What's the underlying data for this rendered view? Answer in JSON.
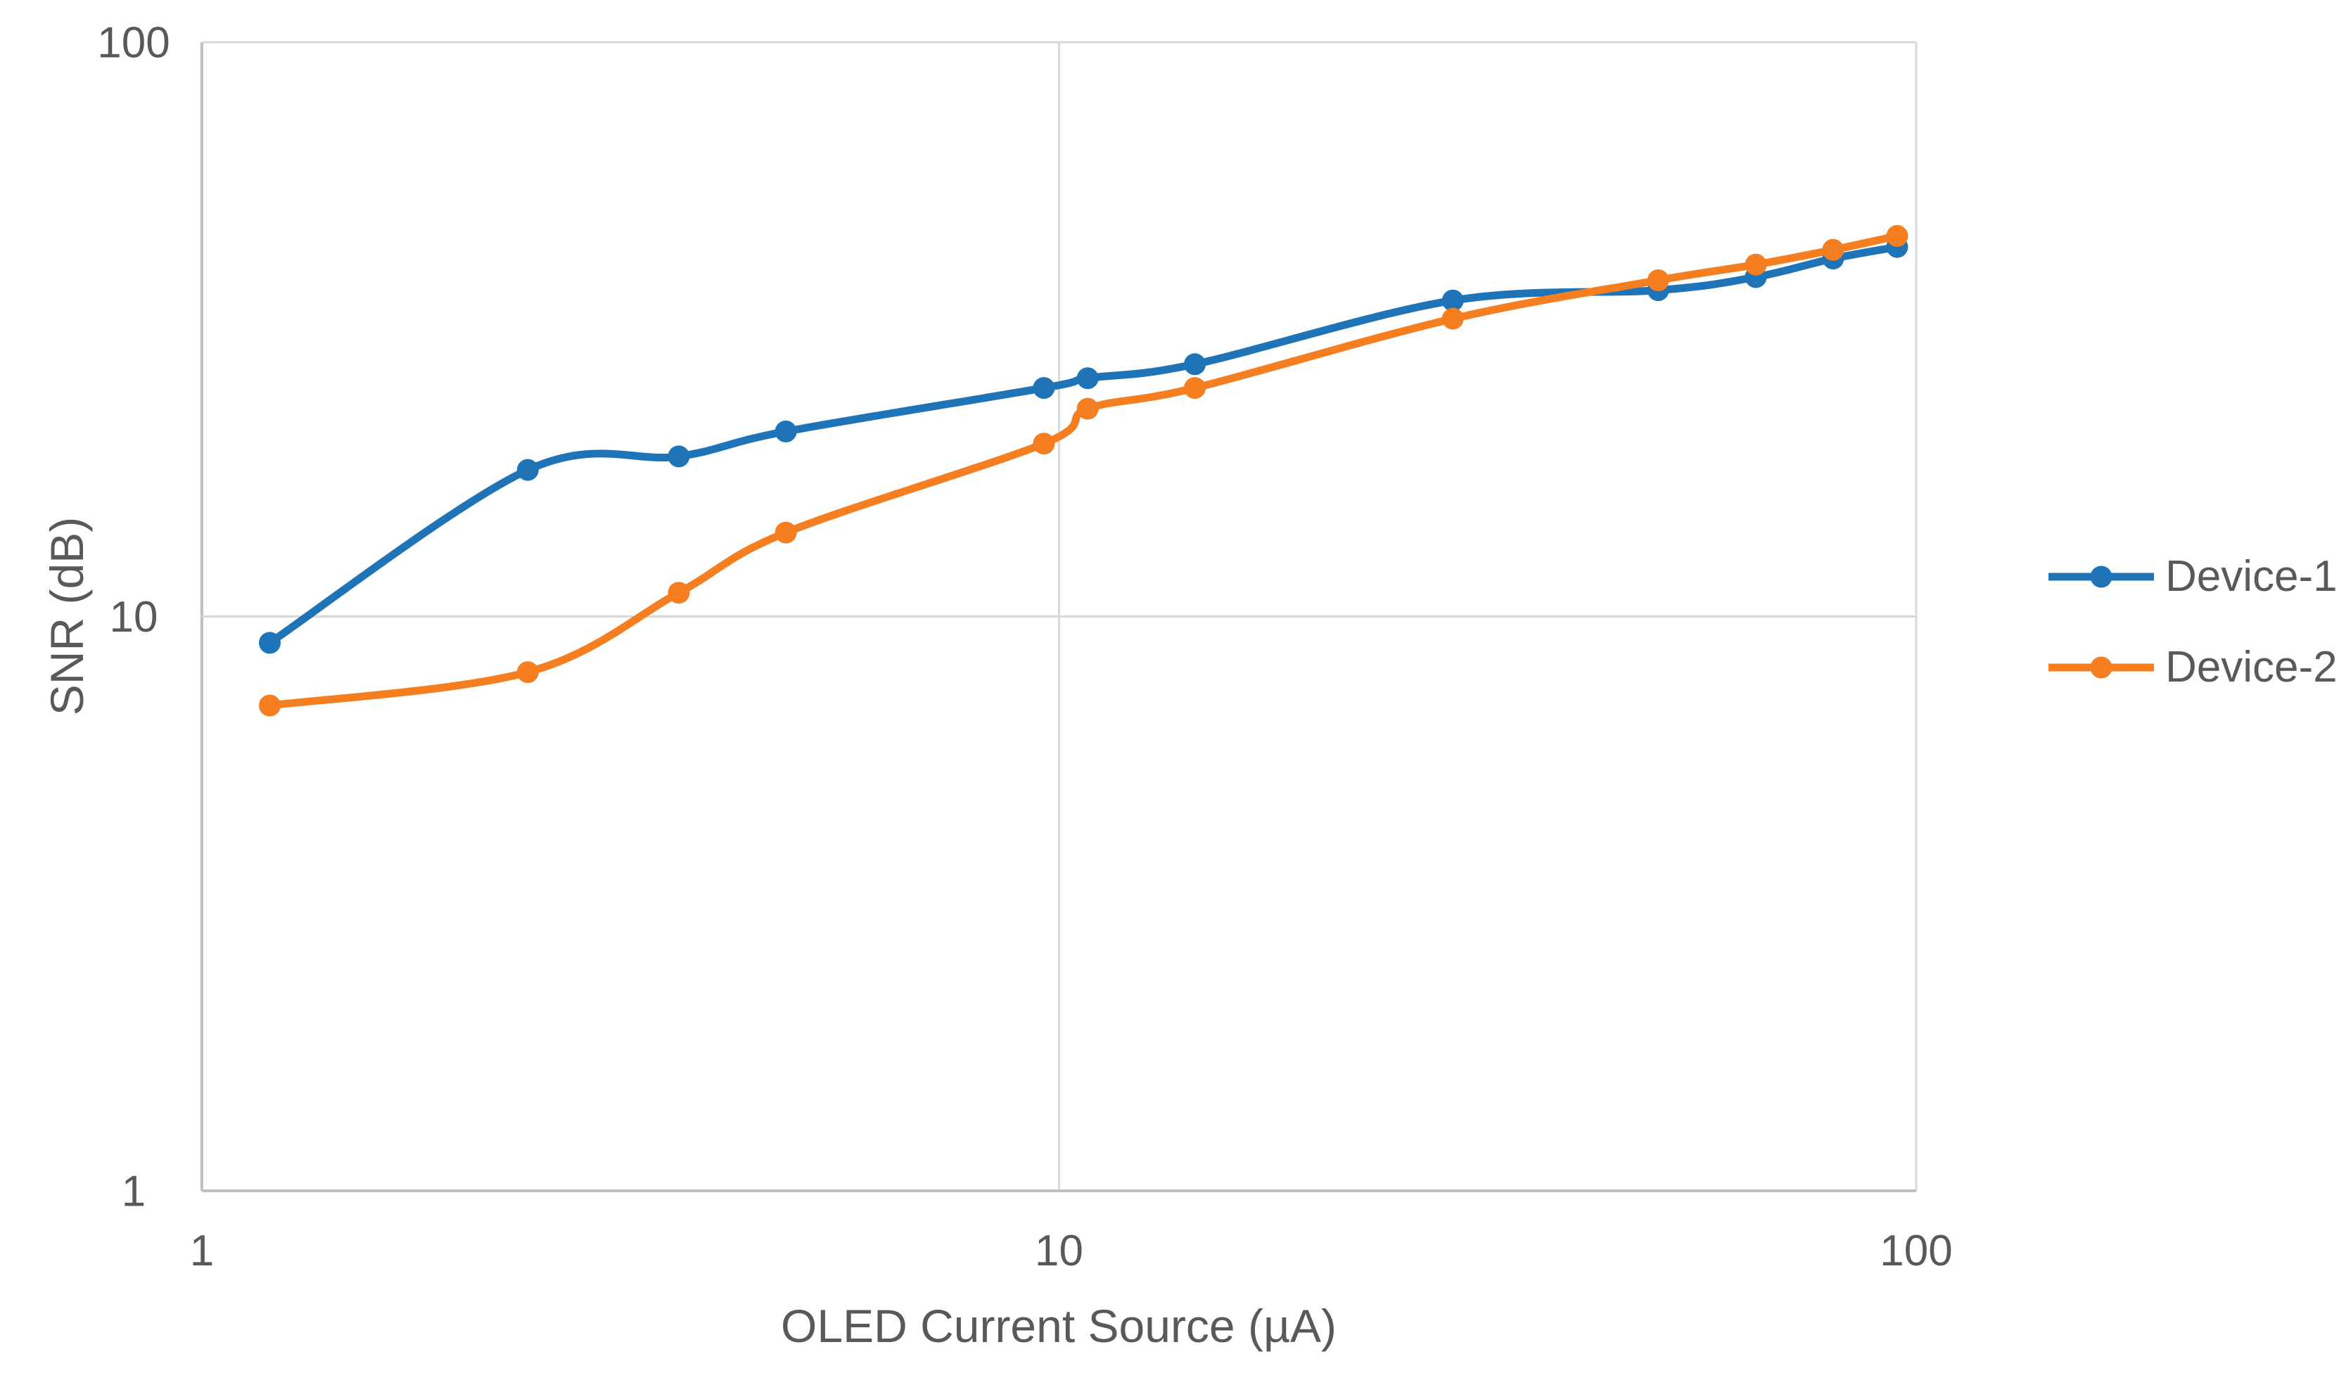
{
  "chart_data": {
    "type": "line",
    "title": "",
    "xlabel": "OLED Current Source (µA)",
    "ylabel": "SNR (dB)",
    "x_scale": "log",
    "y_scale": "log",
    "xlim": [
      1,
      100
    ],
    "ylim": [
      1,
      100
    ],
    "x_ticks": [
      1,
      10,
      100
    ],
    "y_ticks": [
      1,
      10,
      100
    ],
    "grid": true,
    "legend_position": "right-center",
    "x": [
      1.2,
      2.4,
      3.6,
      4.8,
      9.6,
      10.8,
      14.4,
      28.8,
      50,
      65,
      80,
      95
    ],
    "series": [
      {
        "name": "Device-1",
        "color": "#1F74B8",
        "values": [
          9,
          18,
          19,
          21,
          25,
          26,
          27.5,
          35.5,
          37,
          39,
          42,
          44
        ]
      },
      {
        "name": "Device-2",
        "color": "#F57E20",
        "values": [
          7,
          8,
          11,
          14,
          20,
          23,
          25,
          33,
          38.5,
          41,
          43.5,
          46
        ]
      }
    ]
  },
  "colors": {
    "background": "#FFFFFF",
    "axis_text": "#595959",
    "axis_line": "#BFBFBF",
    "gridline": "#D9D9D9"
  }
}
